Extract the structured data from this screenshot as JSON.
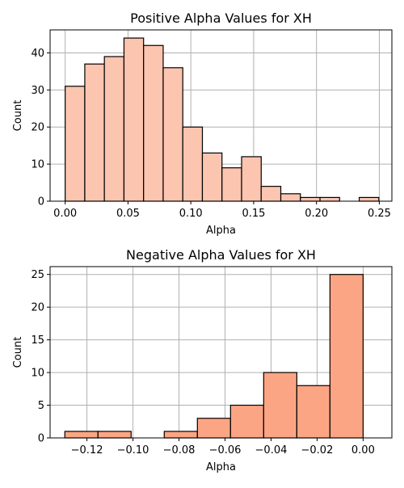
{
  "chart_data": [
    {
      "type": "bar",
      "title": "Positive Alpha Values for XH",
      "xlabel": "Alpha",
      "ylabel": "Count",
      "xlim": [
        -0.012,
        0.26
      ],
      "ylim": [
        0,
        46.2
      ],
      "xticks": [
        0.0,
        0.05,
        0.1,
        0.15,
        0.2,
        0.25
      ],
      "xtick_labels": [
        "0.00",
        "0.05",
        "0.10",
        "0.15",
        "0.20",
        "0.25"
      ],
      "yticks": [
        0,
        10,
        20,
        30,
        40
      ],
      "ytick_labels": [
        "0",
        "10",
        "20",
        "30",
        "40"
      ],
      "grid": true,
      "color": "#fcc5b0",
      "bins": [
        {
          "x0": 0.0,
          "x1": 0.0156,
          "count": 31
        },
        {
          "x0": 0.0156,
          "x1": 0.0312,
          "count": 37
        },
        {
          "x0": 0.0312,
          "x1": 0.0468,
          "count": 39
        },
        {
          "x0": 0.0468,
          "x1": 0.0624,
          "count": 44
        },
        {
          "x0": 0.0624,
          "x1": 0.078,
          "count": 42
        },
        {
          "x0": 0.078,
          "x1": 0.0936,
          "count": 36
        },
        {
          "x0": 0.0936,
          "x1": 0.1092,
          "count": 20
        },
        {
          "x0": 0.1092,
          "x1": 0.1248,
          "count": 13
        },
        {
          "x0": 0.1248,
          "x1": 0.1404,
          "count": 9
        },
        {
          "x0": 0.1404,
          "x1": 0.156,
          "count": 12
        },
        {
          "x0": 0.156,
          "x1": 0.1716,
          "count": 4
        },
        {
          "x0": 0.1716,
          "x1": 0.1872,
          "count": 2
        },
        {
          "x0": 0.1872,
          "x1": 0.2028,
          "count": 1
        },
        {
          "x0": 0.2028,
          "x1": 0.2184,
          "count": 1
        },
        {
          "x0": 0.2184,
          "x1": 0.234,
          "count": 0
        },
        {
          "x0": 0.234,
          "x1": 0.2496,
          "count": 1
        }
      ]
    },
    {
      "type": "bar",
      "title": "Negative Alpha Values for XH",
      "xlabel": "Alpha",
      "ylabel": "Count",
      "xlim": [
        -0.136,
        0.0125
      ],
      "ylim": [
        0,
        26.2
      ],
      "xticks": [
        -0.12,
        -0.1,
        -0.08,
        -0.06,
        -0.04,
        -0.02,
        0.0
      ],
      "xtick_labels": [
        "−0.12",
        "−0.10",
        "−0.08",
        "−0.06",
        "−0.04",
        "−0.02",
        "0.00"
      ],
      "yticks": [
        0,
        5,
        10,
        15,
        20,
        25
      ],
      "ytick_labels": [
        "0",
        "5",
        "10",
        "15",
        "20",
        "25"
      ],
      "grid": true,
      "color": "#fca584",
      "bins": [
        {
          "x0": -0.1296,
          "x1": -0.1152,
          "count": 1
        },
        {
          "x0": -0.1152,
          "x1": -0.1008,
          "count": 1
        },
        {
          "x0": -0.1008,
          "x1": -0.0864,
          "count": 0
        },
        {
          "x0": -0.0864,
          "x1": -0.072,
          "count": 1
        },
        {
          "x0": -0.072,
          "x1": -0.0576,
          "count": 3
        },
        {
          "x0": -0.0576,
          "x1": -0.0432,
          "count": 5
        },
        {
          "x0": -0.0432,
          "x1": -0.0288,
          "count": 10
        },
        {
          "x0": -0.0288,
          "x1": -0.0144,
          "count": 8
        },
        {
          "x0": -0.0144,
          "x1": 0.0,
          "count": 25
        }
      ]
    }
  ]
}
